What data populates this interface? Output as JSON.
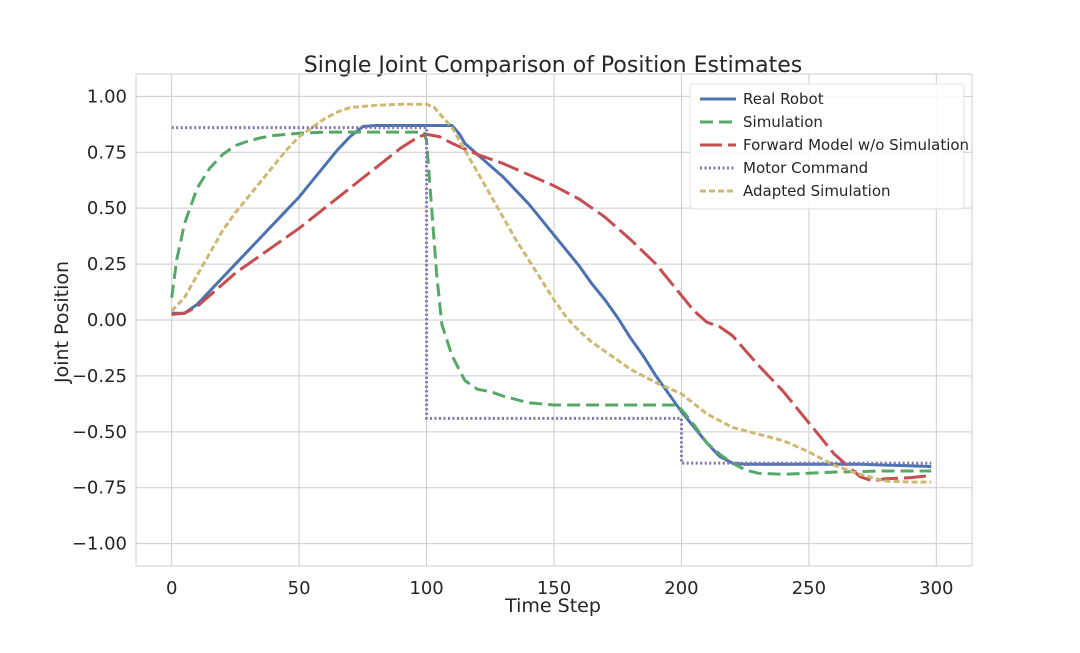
{
  "chart_data": {
    "type": "line",
    "title": "Single Joint Comparison of Position Estimates",
    "xlabel": "Time Step",
    "ylabel": "Joint Position",
    "xlim": [
      -14,
      314
    ],
    "ylim": [
      -1.1,
      1.1
    ],
    "xticks": [
      0,
      50,
      100,
      150,
      200,
      250,
      300
    ],
    "yticks": [
      1.0,
      0.75,
      0.5,
      0.25,
      0.0,
      -0.25,
      -0.5,
      -0.75,
      -1.0
    ],
    "xtick_labels": [
      "0",
      "50",
      "100",
      "150",
      "200",
      "250",
      "300"
    ],
    "ytick_labels": [
      "1.00",
      "0.75",
      "0.50",
      "0.25",
      "0.00",
      "−0.25",
      "−0.50",
      "−0.75",
      "−1.00"
    ],
    "grid": true,
    "legend_position": "top-right",
    "series": [
      {
        "name": "Real Robot",
        "color": "#4c72b0",
        "style": "solid",
        "points": [
          [
            0,
            0.03
          ],
          [
            5,
            0.03
          ],
          [
            10,
            0.07
          ],
          [
            15,
            0.13
          ],
          [
            20,
            0.19
          ],
          [
            25,
            0.25
          ],
          [
            30,
            0.31
          ],
          [
            35,
            0.37
          ],
          [
            40,
            0.43
          ],
          [
            45,
            0.49
          ],
          [
            50,
            0.55
          ],
          [
            55,
            0.62
          ],
          [
            60,
            0.69
          ],
          [
            65,
            0.76
          ],
          [
            70,
            0.82
          ],
          [
            75,
            0.865
          ],
          [
            80,
            0.87
          ],
          [
            90,
            0.87
          ],
          [
            100,
            0.87
          ],
          [
            110,
            0.87
          ],
          [
            113,
            0.83
          ],
          [
            115,
            0.79
          ],
          [
            120,
            0.74
          ],
          [
            125,
            0.69
          ],
          [
            130,
            0.64
          ],
          [
            135,
            0.58
          ],
          [
            140,
            0.52
          ],
          [
            145,
            0.45
          ],
          [
            150,
            0.38
          ],
          [
            155,
            0.31
          ],
          [
            160,
            0.24
          ],
          [
            165,
            0.16
          ],
          [
            170,
            0.09
          ],
          [
            175,
            0.01
          ],
          [
            180,
            -0.08
          ],
          [
            185,
            -0.16
          ],
          [
            190,
            -0.25
          ],
          [
            195,
            -0.33
          ],
          [
            200,
            -0.41
          ],
          [
            205,
            -0.48
          ],
          [
            210,
            -0.55
          ],
          [
            215,
            -0.61
          ],
          [
            220,
            -0.64
          ],
          [
            225,
            -0.645
          ],
          [
            230,
            -0.645
          ],
          [
            250,
            -0.645
          ],
          [
            270,
            -0.645
          ],
          [
            298,
            -0.655
          ]
        ]
      },
      {
        "name": "Simulation",
        "color": "#55a868",
        "style": "dashed",
        "points": [
          [
            0,
            0.1
          ],
          [
            2,
            0.27
          ],
          [
            5,
            0.43
          ],
          [
            10,
            0.59
          ],
          [
            15,
            0.68
          ],
          [
            20,
            0.74
          ],
          [
            25,
            0.78
          ],
          [
            30,
            0.8
          ],
          [
            35,
            0.815
          ],
          [
            40,
            0.825
          ],
          [
            50,
            0.835
          ],
          [
            60,
            0.84
          ],
          [
            80,
            0.84
          ],
          [
            99,
            0.84
          ],
          [
            100,
            0.8
          ],
          [
            102,
            0.5
          ],
          [
            104,
            0.2
          ],
          [
            106,
            -0.02
          ],
          [
            110,
            -0.16
          ],
          [
            115,
            -0.27
          ],
          [
            120,
            -0.31
          ],
          [
            125,
            -0.32
          ],
          [
            130,
            -0.34
          ],
          [
            140,
            -0.37
          ],
          [
            150,
            -0.38
          ],
          [
            170,
            -0.38
          ],
          [
            198,
            -0.38
          ],
          [
            200,
            -0.4
          ],
          [
            205,
            -0.47
          ],
          [
            210,
            -0.55
          ],
          [
            215,
            -0.6
          ],
          [
            220,
            -0.64
          ],
          [
            225,
            -0.67
          ],
          [
            230,
            -0.685
          ],
          [
            240,
            -0.69
          ],
          [
            260,
            -0.68
          ],
          [
            280,
            -0.675
          ],
          [
            298,
            -0.675
          ]
        ]
      },
      {
        "name": "Forward Model w/o Simulation",
        "color": "#c44e52",
        "style": "longdash",
        "points": [
          [
            0,
            0.025
          ],
          [
            5,
            0.03
          ],
          [
            10,
            0.06
          ],
          [
            15,
            0.11
          ],
          [
            20,
            0.16
          ],
          [
            25,
            0.21
          ],
          [
            30,
            0.25
          ],
          [
            40,
            0.33
          ],
          [
            50,
            0.41
          ],
          [
            60,
            0.5
          ],
          [
            70,
            0.59
          ],
          [
            80,
            0.68
          ],
          [
            90,
            0.77
          ],
          [
            97,
            0.82
          ],
          [
            100,
            0.83
          ],
          [
            105,
            0.82
          ],
          [
            110,
            0.79
          ],
          [
            120,
            0.74
          ],
          [
            130,
            0.7
          ],
          [
            140,
            0.65
          ],
          [
            150,
            0.6
          ],
          [
            160,
            0.54
          ],
          [
            170,
            0.46
          ],
          [
            180,
            0.36
          ],
          [
            190,
            0.25
          ],
          [
            200,
            0.11
          ],
          [
            205,
            0.04
          ],
          [
            210,
            -0.01
          ],
          [
            215,
            -0.03
          ],
          [
            220,
            -0.07
          ],
          [
            230,
            -0.2
          ],
          [
            240,
            -0.32
          ],
          [
            250,
            -0.46
          ],
          [
            260,
            -0.6
          ],
          [
            270,
            -0.7
          ],
          [
            275,
            -0.72
          ],
          [
            280,
            -0.71
          ],
          [
            290,
            -0.705
          ],
          [
            298,
            -0.695
          ]
        ]
      },
      {
        "name": "Motor Command",
        "color": "#8172b2",
        "style": "dotted",
        "points": [
          [
            0,
            0.86
          ],
          [
            99,
            0.86
          ],
          [
            100,
            0.86
          ],
          [
            100,
            -0.44
          ],
          [
            199,
            -0.44
          ],
          [
            200,
            -0.44
          ],
          [
            200,
            -0.64
          ],
          [
            298,
            -0.64
          ]
        ]
      },
      {
        "name": "Adapted Simulation",
        "color": "#ccb974",
        "style": "shortdash",
        "points": [
          [
            0,
            0.04
          ],
          [
            5,
            0.1
          ],
          [
            10,
            0.2
          ],
          [
            15,
            0.3
          ],
          [
            20,
            0.4
          ],
          [
            25,
            0.48
          ],
          [
            30,
            0.55
          ],
          [
            35,
            0.62
          ],
          [
            40,
            0.69
          ],
          [
            45,
            0.76
          ],
          [
            50,
            0.82
          ],
          [
            55,
            0.86
          ],
          [
            60,
            0.9
          ],
          [
            65,
            0.93
          ],
          [
            70,
            0.95
          ],
          [
            80,
            0.96
          ],
          [
            90,
            0.965
          ],
          [
            100,
            0.965
          ],
          [
            103,
            0.95
          ],
          [
            110,
            0.86
          ],
          [
            115,
            0.76
          ],
          [
            120,
            0.66
          ],
          [
            125,
            0.56
          ],
          [
            130,
            0.46
          ],
          [
            135,
            0.36
          ],
          [
            140,
            0.27
          ],
          [
            145,
            0.18
          ],
          [
            150,
            0.09
          ],
          [
            155,
            0.01
          ],
          [
            160,
            -0.05
          ],
          [
            165,
            -0.1
          ],
          [
            170,
            -0.14
          ],
          [
            175,
            -0.18
          ],
          [
            180,
            -0.22
          ],
          [
            190,
            -0.28
          ],
          [
            200,
            -0.33
          ],
          [
            210,
            -0.42
          ],
          [
            220,
            -0.48
          ],
          [
            230,
            -0.51
          ],
          [
            240,
            -0.54
          ],
          [
            250,
            -0.59
          ],
          [
            260,
            -0.65
          ],
          [
            270,
            -0.69
          ],
          [
            280,
            -0.72
          ],
          [
            290,
            -0.725
          ],
          [
            298,
            -0.725
          ]
        ]
      }
    ]
  }
}
